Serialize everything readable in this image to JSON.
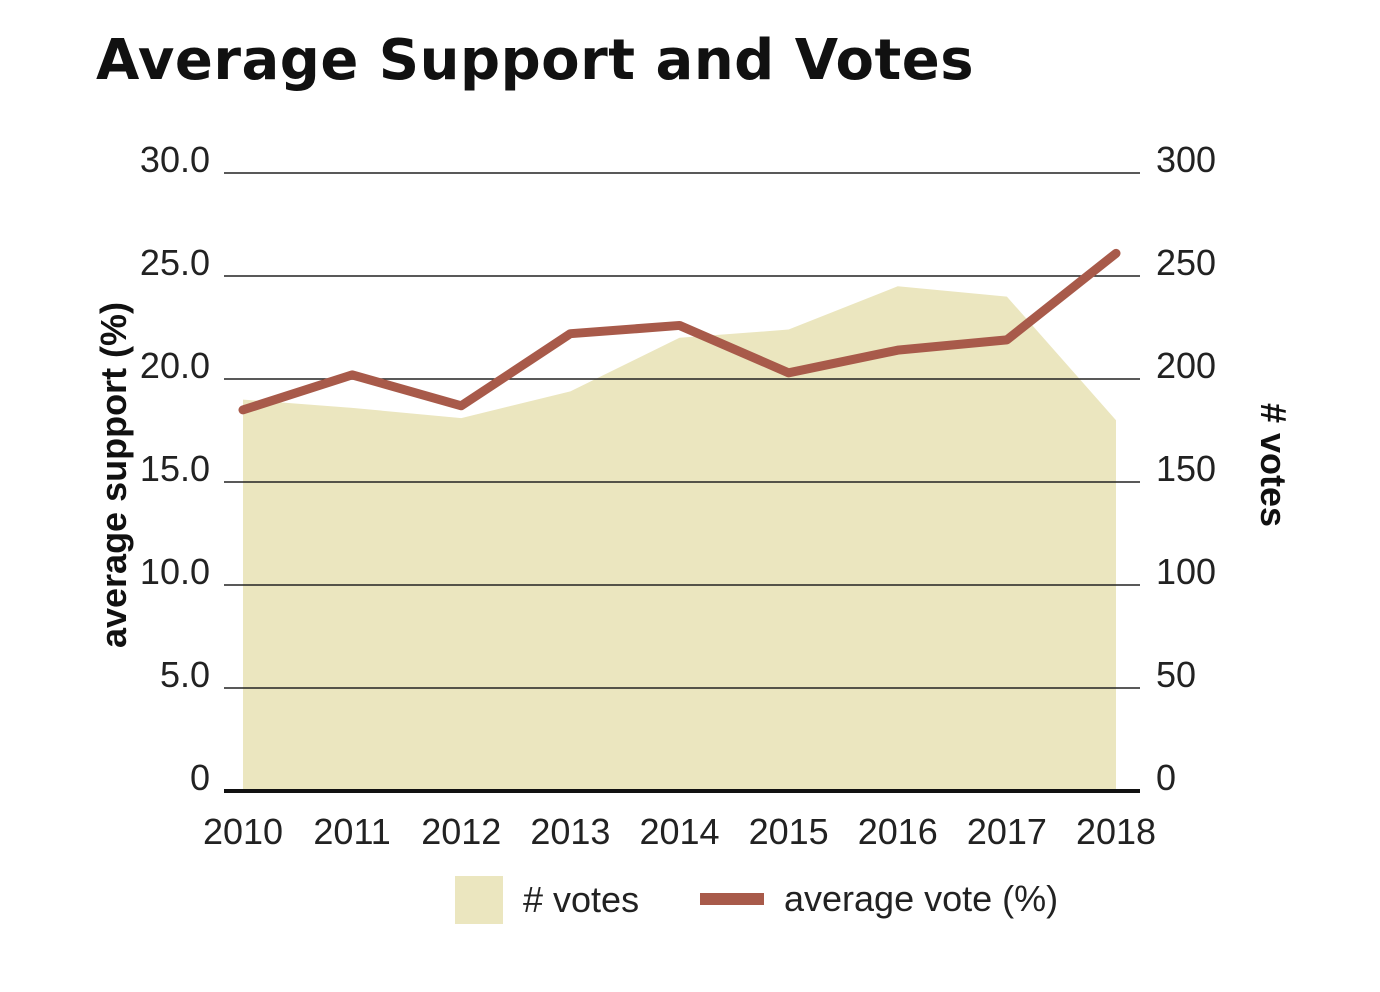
{
  "title": "Average Support and Votes",
  "colors": {
    "votes_area": "#ebe6bf",
    "avg_line": "#a85a4a",
    "grid": "#222222",
    "baseline": "#111111"
  },
  "chart_data": {
    "type": "area+line",
    "title": "Average Support and Votes",
    "x": [
      "2010",
      "2011",
      "2012",
      "2013",
      "2014",
      "2015",
      "2016",
      "2017",
      "2018"
    ],
    "series": [
      {
        "name": "# votes",
        "type": "area",
        "axis": "right",
        "values": [
          190,
          186,
          181,
          194,
          220,
          224,
          245,
          240,
          180
        ]
      },
      {
        "name": "average vote (%)",
        "type": "line",
        "axis": "left",
        "values": [
          18.5,
          20.2,
          18.7,
          22.2,
          22.6,
          20.3,
          21.4,
          21.9,
          26.1
        ]
      }
    ],
    "y_left": {
      "label": "average support (%)",
      "range": [
        0,
        30
      ],
      "ticks": [
        "30.0",
        "25.0",
        "20.0",
        "15.0",
        "10.0",
        "5.0",
        "0"
      ],
      "tick_values": [
        30,
        25,
        20,
        15,
        10,
        5,
        0
      ]
    },
    "y_right": {
      "label": "# votes",
      "range": [
        0,
        300
      ],
      "ticks": [
        "300",
        "250",
        "200",
        "150",
        "100",
        "50",
        "0"
      ],
      "tick_values": [
        300,
        250,
        200,
        150,
        100,
        50,
        0
      ]
    },
    "grid": true,
    "legend": {
      "position": "bottom-center",
      "items": [
        "# votes",
        "average vote (%)"
      ]
    }
  }
}
